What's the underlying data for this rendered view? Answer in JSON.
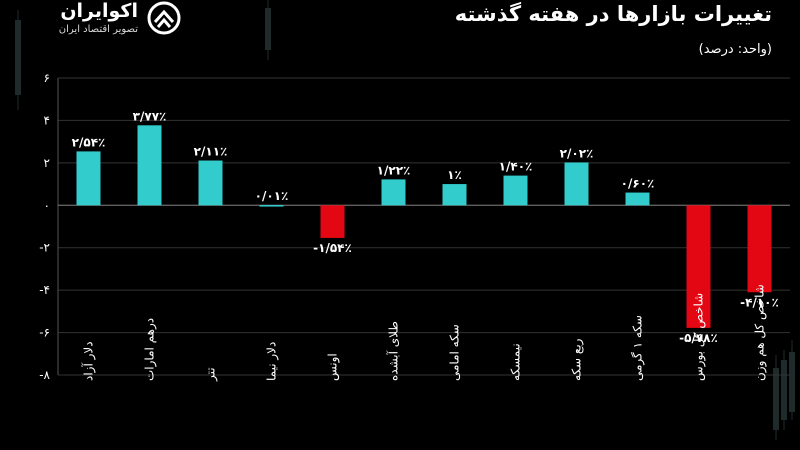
{
  "header": {
    "title": "تغییرات بازارها در هفته گذشته",
    "unit": "(واحد: درصد)"
  },
  "logo": {
    "name": "اکوایران",
    "tagline": "تصویر اقتصاد ایران"
  },
  "colors": {
    "positive": "#33cccc",
    "negative": "#e30613",
    "background": "#000000",
    "grid": "#333333",
    "text": "#ffffff"
  },
  "chart_data": {
    "type": "bar",
    "categories": [
      "دلار آزاد",
      "درهم امارات",
      "تتر",
      "دلار نیما",
      "اونس",
      "طلای آبشده",
      "سکه امامی",
      "نیمسکه",
      "ربع سکه",
      "سکه ۱ گرمی",
      "شاخص کل بورس",
      "شاخص کل هم وزن"
    ],
    "values": [
      2.54,
      3.77,
      2.11,
      0.01,
      -1.54,
      1.22,
      1,
      1.4,
      2.02,
      0.6,
      -5.78,
      -4.1
    ],
    "value_labels": [
      "۲/۵۴٪",
      "۳/۷۷٪",
      "۲/۱۱٪",
      "۰/۰۱٪",
      "-۱/۵۴٪",
      "۱/۲۲٪",
      "۱٪",
      "۱/۴۰٪",
      "۲/۰۲٪",
      "۰/۶۰٪",
      "-۵/۷۸٪",
      "-۴/۱۰٪"
    ],
    "yticks": [
      6,
      4,
      2,
      0,
      -2,
      -4,
      -6,
      -8
    ],
    "ytick_labels": [
      "۶",
      "۴",
      "۲",
      "۰",
      "-۲",
      "-۴",
      "-۶",
      "-۸"
    ],
    "ylim": [
      -8,
      6
    ],
    "grid": true,
    "title": "تغییرات بازارها در هفته گذشته",
    "ylabel": "(واحد: درصد)",
    "xlabel": ""
  }
}
